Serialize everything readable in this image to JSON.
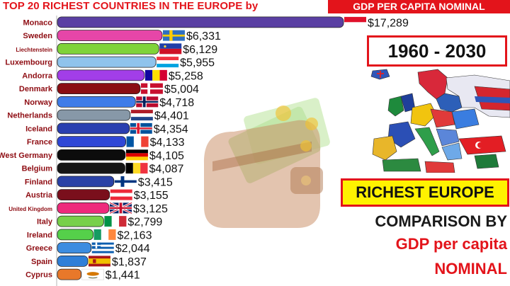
{
  "header": {
    "title": "TOP 20 RICHEST COUNTRIES IN THE EUROPE by",
    "badge": "GDP PER CAPITA NOMINAL"
  },
  "side_panel": {
    "years": "1960 - 2030",
    "richest": "RICHEST EUROPE",
    "caption_line1": "COMPARISON BY",
    "caption_line2": "GDP per capita",
    "caption_line3": "NOMINAL"
  },
  "colors": {
    "accent": "#e3141b",
    "highlight": "#fff200",
    "axis": "#b5b5b5"
  },
  "icons": [
    "wallet-icon",
    "money-bills-icon",
    "gold-coins-icon",
    "europe-map-icon"
  ],
  "chart_data": {
    "type": "bar",
    "orientation": "horizontal",
    "title": "TOP 20 RICHEST COUNTRIES IN THE EUROPE by GDP PER CAPITA NOMINAL",
    "xlim": [
      0,
      17289
    ],
    "categories": [
      "Monaco",
      "Sweden",
      "Liechtenstein",
      "Luxembourg",
      "Andorra",
      "Denmark",
      "Norway",
      "Netherlands",
      "Iceland",
      "France",
      "West Germany",
      "Belgium",
      "Finland",
      "Austria",
      "United Kingdom",
      "Italy",
      "Ireland",
      "Greece",
      "Spain",
      "Cyprus"
    ],
    "values": [
      17289,
      6331,
      6129,
      5955,
      5258,
      5004,
      4718,
      4401,
      4354,
      4133,
      4105,
      4087,
      3415,
      3155,
      3125,
      2799,
      2163,
      2044,
      1837,
      1441
    ],
    "labels": [
      "$17,289",
      "$6,331",
      "$6,129",
      "$5,955",
      "$5,258",
      "$5,004",
      "$4,718",
      "$4,401",
      "$4,354",
      "$4,133",
      "$4,105",
      "$4,087",
      "$3,415",
      "$3,155",
      "$3,125",
      "$2,799",
      "$2,163",
      "$2,044",
      "$1,837",
      "$1,441"
    ],
    "bar_colors": [
      "#5a3fa3",
      "#e646a8",
      "#7fd33a",
      "#8fc3ec",
      "#a23ee8",
      "#8a0d12",
      "#3f7ce8",
      "#8798a8",
      "#2a3fb0",
      "#2f47d6",
      "#0c0c0c",
      "#151515",
      "#2a42a6",
      "#7a0f1c",
      "#ee2a7c",
      "#77d04a",
      "#55d04a",
      "#3c8ce0",
      "#2f7fd8",
      "#e8782a"
    ],
    "flags": [
      "monaco",
      "sweden",
      "liechtenstein",
      "luxembourg",
      "andorra",
      "denmark",
      "norway",
      "netherlands",
      "iceland",
      "france",
      "germany",
      "belgium",
      "finland",
      "austria",
      "united-kingdom",
      "italy",
      "ireland",
      "greece",
      "spain",
      "cyprus"
    ]
  }
}
